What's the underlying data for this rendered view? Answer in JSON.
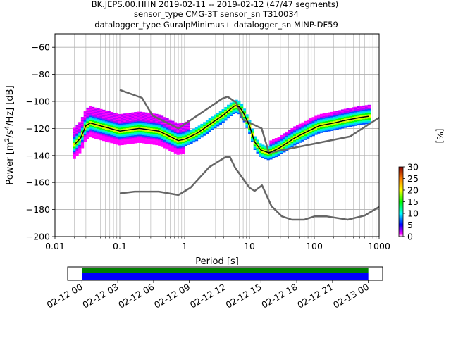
{
  "title_lines": [
    "BK.JEPS.00.HHN   2019-02-11 -- 2019-02-12  (47/47 segments)",
    "sensor_type CMG-3T sensor_sn T310034",
    "datalogger_type GuralpMinimus+ datalogger_sn MINP-DF59"
  ],
  "colors": {
    "noise_model": "#666666",
    "mode_line": "#000000",
    "grid": "#b0b0b0",
    "coverage_top": "#008000",
    "coverage_bottom": "#0000ff"
  },
  "chart_data": [
    {
      "type": "heatmap",
      "name": "ppsd",
      "xlabel": "Period [s]",
      "ylabel": "Power [m²/s⁴/Hz] [dB]",
      "xscale": "log",
      "xlim": [
        0.01,
        1000
      ],
      "ylim": [
        -200,
        -50
      ],
      "x_tick_labels": [
        "0.01",
        "0.1",
        "1",
        "10",
        "100",
        "1000"
      ],
      "x_ticks": [
        0.01,
        0.1,
        1,
        10,
        100,
        1000
      ],
      "y_ticks": [
        -200,
        -180,
        -160,
        -140,
        -120,
        -100,
        -80,
        -60
      ],
      "grid": true,
      "new_high_noise_model": {
        "x": [
          0.1,
          0.22,
          0.32,
          0.8,
          3.8,
          4.6,
          6.3,
          7.9,
          15.4,
          20,
          354.8,
          1000
        ],
        "y": [
          -91.5,
          -97.4,
          -110.5,
          -120,
          -98,
          -96.5,
          -101,
          -113.5,
          -120,
          -138,
          -126,
          -112
        ]
      },
      "new_low_noise_model": {
        "x": [
          0.1,
          0.17,
          0.4,
          0.8,
          1.24,
          2.4,
          4.3,
          5,
          6,
          10,
          12,
          15.6,
          21.9,
          31.6,
          45,
          70,
          101,
          154,
          328,
          600,
          1000
        ],
        "y": [
          -168,
          -166.7,
          -166.7,
          -169.2,
          -163.7,
          -148.6,
          -141.1,
          -141.1,
          -149,
          -163.8,
          -166.2,
          -162.1,
          -177.5,
          -185,
          -187.5,
          -187.5,
          -185,
          -185,
          -187.5,
          -184.4,
          -178
        ]
      },
      "mode": {
        "x": [
          0.02,
          0.025,
          0.03,
          0.035,
          0.05,
          0.1,
          0.2,
          0.4,
          0.6,
          0.8,
          1,
          1.5,
          2,
          3,
          4,
          5,
          6,
          7,
          8,
          10,
          12,
          15,
          20,
          25,
          30,
          50,
          80,
          120,
          200,
          300,
          500,
          700
        ],
        "y": [
          -132,
          -127,
          -118,
          -116,
          -118,
          -122,
          -120,
          -122,
          -126,
          -129,
          -128,
          -124,
          -120,
          -114,
          -110,
          -106,
          -103,
          -104,
          -108,
          -118,
          -130,
          -136,
          -138,
          -136,
          -134,
          -127,
          -122,
          -118,
          -116,
          -114,
          -112,
          -111
        ]
      },
      "colorbar": {
        "label": "[%]",
        "range": [
          0,
          30
        ],
        "ticks": [
          0,
          5,
          10,
          15,
          20,
          25,
          30
        ]
      }
    },
    {
      "type": "bar",
      "name": "data-coverage",
      "x_tick_labels": [
        "02-12 00",
        "02-12 03",
        "02-12 06",
        "02-12 09",
        "02-12 12",
        "02-12 15",
        "02-12 18",
        "02-12 21",
        "02-13 00"
      ],
      "x_ticks_hours": [
        0,
        3,
        6,
        9,
        12,
        15,
        18,
        21,
        24
      ],
      "xlim_hours": [
        -1.2,
        25.2
      ],
      "coverage_hours": [
        0,
        24
      ]
    }
  ]
}
